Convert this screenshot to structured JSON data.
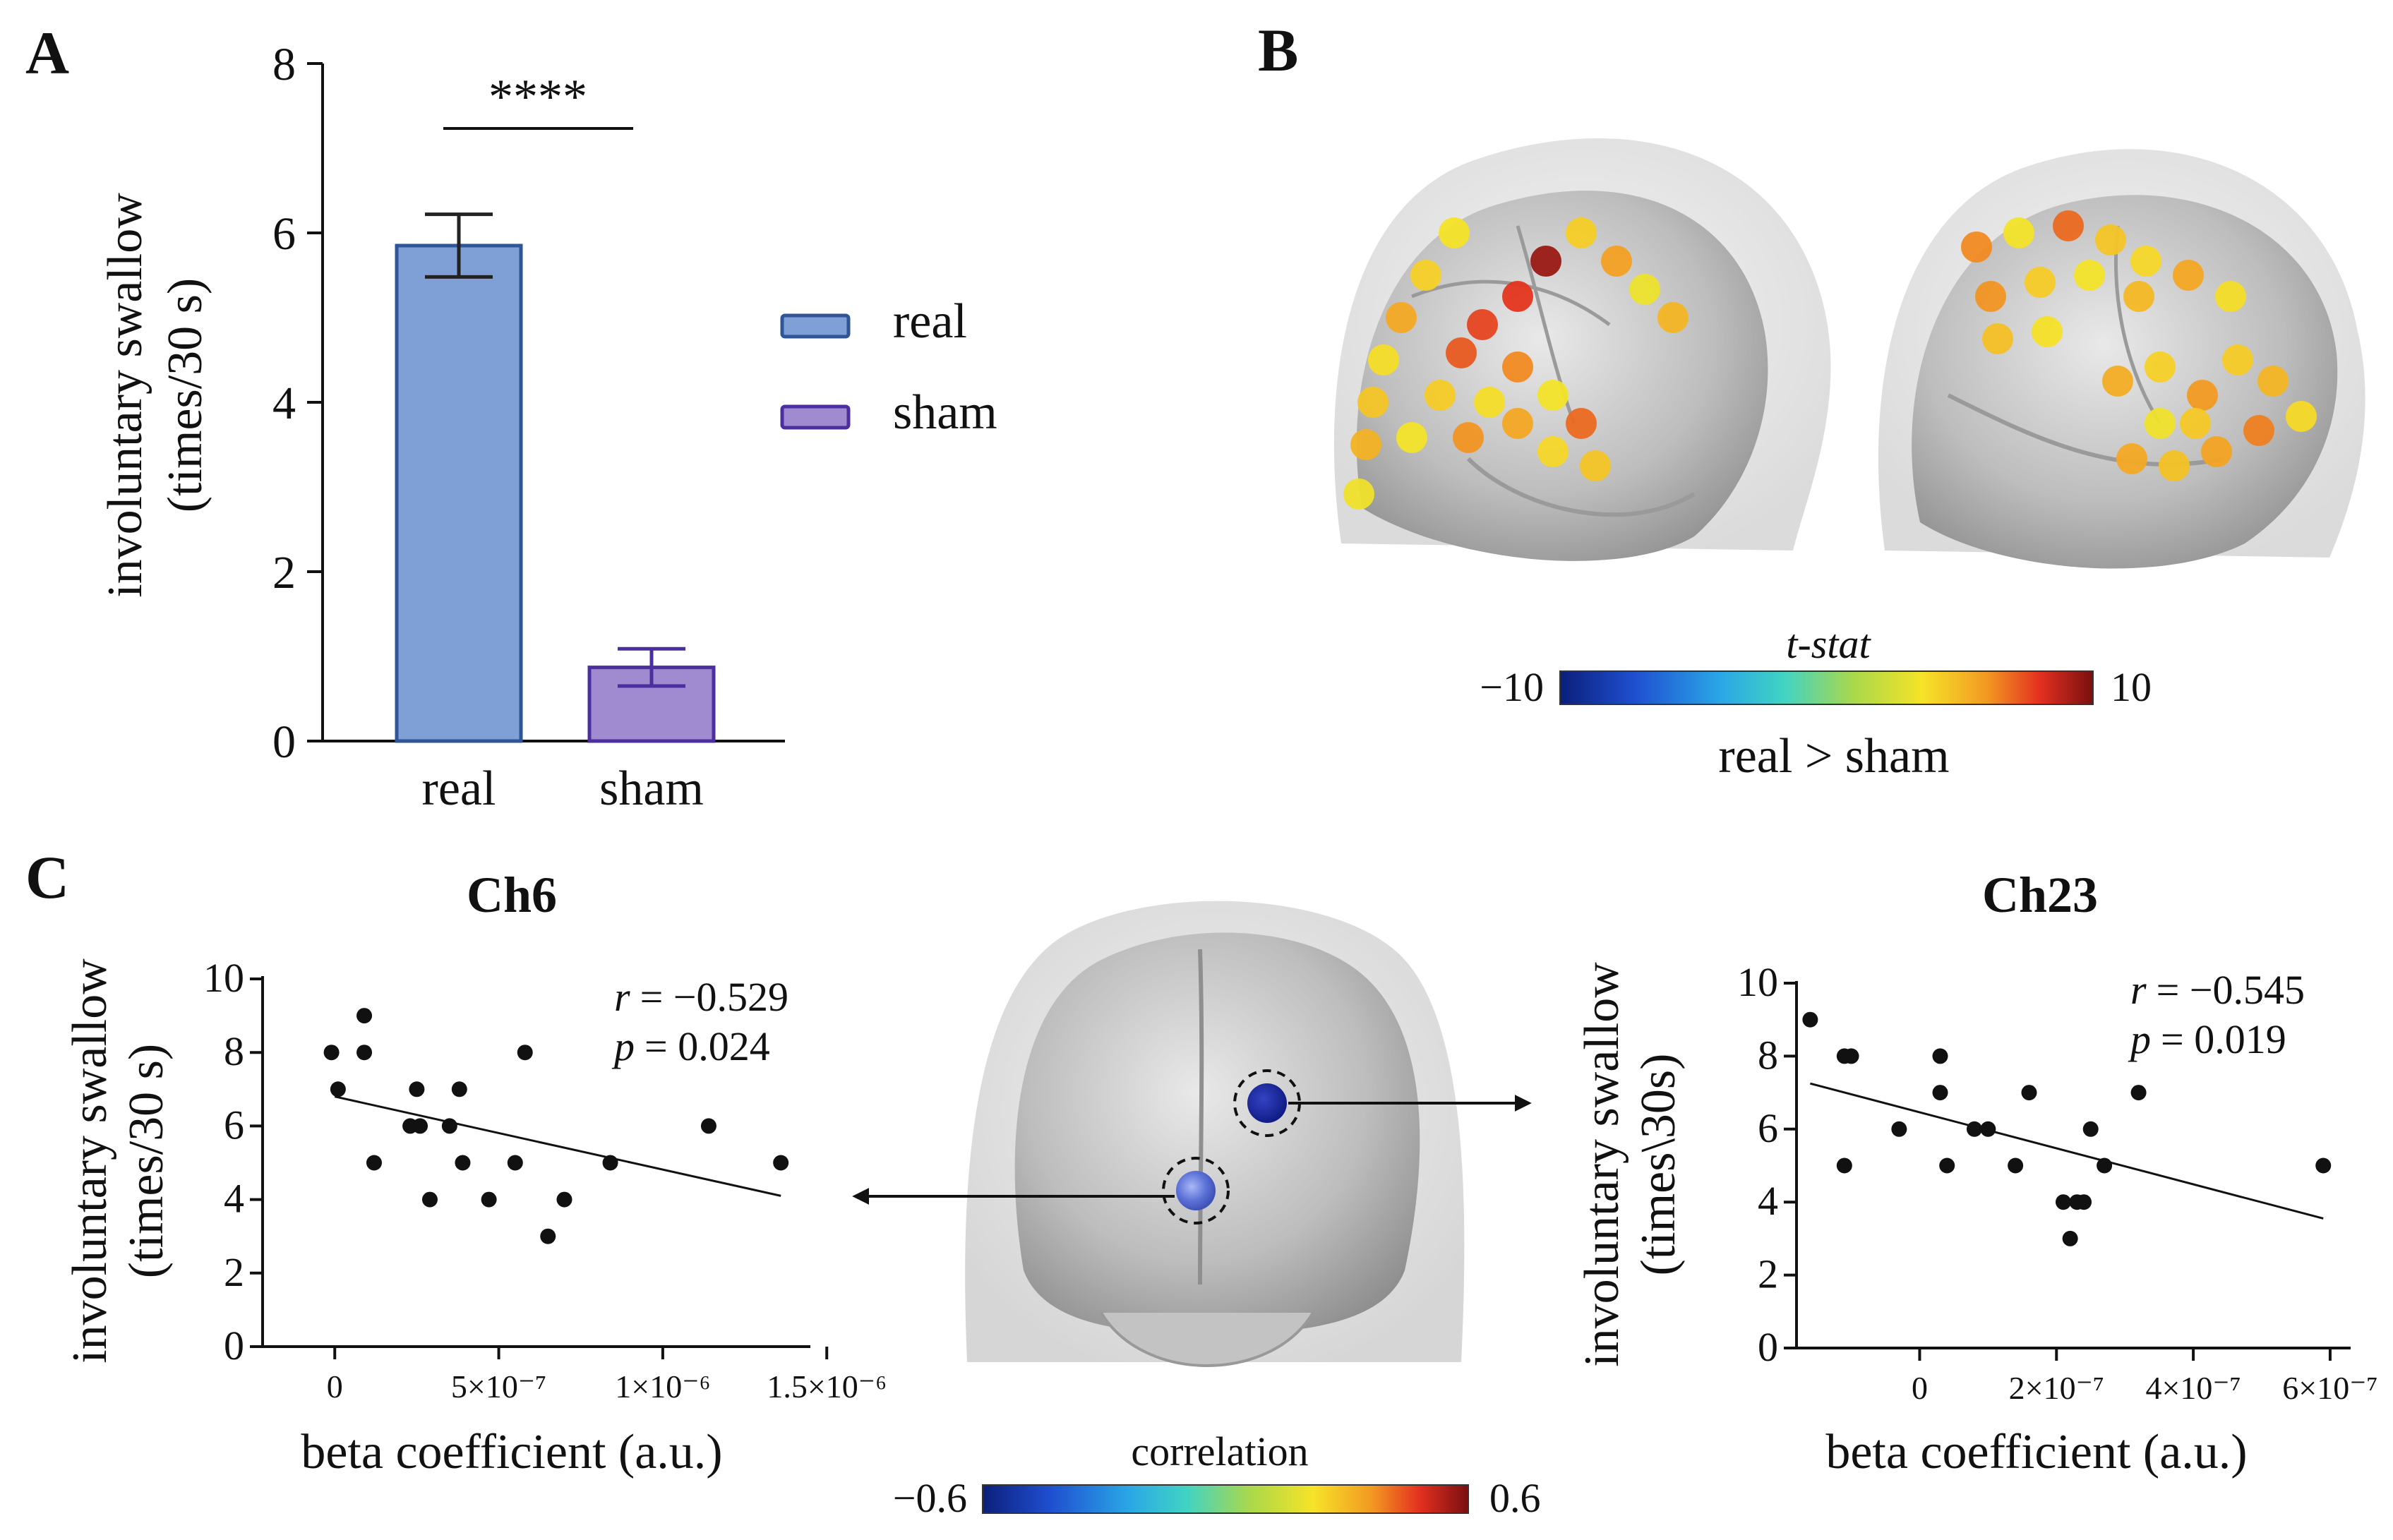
{
  "panels": {
    "a": "A",
    "b": "B",
    "c": "C"
  },
  "colors": {
    "real": "#7ea0d6",
    "real_edge": "#2f5597",
    "sham": "#a08ad0",
    "sham_edge": "#4b2f9f",
    "brain": "#c8c8c8",
    "head": "#e4e4e4"
  },
  "icons": {
    "brain_views": "brain-render-icon",
    "arrows": "arrow-icon"
  },
  "chart_data": [
    {
      "id": "A",
      "type": "bar",
      "categories": [
        "real",
        "sham"
      ],
      "values": [
        5.85,
        0.87
      ],
      "errors": [
        0.37,
        0.22
      ],
      "ylim": [
        0,
        8
      ],
      "yticks": [
        "0",
        "2",
        "4",
        "6",
        "8"
      ],
      "ylabel_line1": "involuntary swallow",
      "ylabel_line2": "(times/30 s)",
      "significance": "****",
      "legend": [
        "real",
        "sham"
      ]
    },
    {
      "id": "C-Ch6",
      "type": "scatter",
      "title": "Ch6",
      "xlabel": "beta coefficient (a.u.)",
      "ylabel_line1": "involuntary swallow",
      "ylabel_line2": "(times/30 s)",
      "xlim": [
        -2.2e-07,
        1.45e-06
      ],
      "ylim": [
        0,
        10
      ],
      "xticks": [
        {
          "v": 0,
          "label": "0"
        },
        {
          "v": 5e-07,
          "label": "5×10⁻⁷"
        },
        {
          "v": 1e-06,
          "label": "1×10⁻⁶"
        },
        {
          "v": 1.5e-06,
          "label": "1.5×10⁻⁶"
        }
      ],
      "yticks": [
        "0",
        "2",
        "4",
        "6",
        "8",
        "10"
      ],
      "points": [
        [
          -1e-08,
          8
        ],
        [
          1e-08,
          7
        ],
        [
          9e-08,
          9
        ],
        [
          9e-08,
          8
        ],
        [
          1.2e-07,
          5
        ],
        [
          2.3e-07,
          6
        ],
        [
          2.5e-07,
          7
        ],
        [
          2.6e-07,
          6
        ],
        [
          2.9e-07,
          4
        ],
        [
          3.5e-07,
          6
        ],
        [
          3.8e-07,
          7
        ],
        [
          3.9e-07,
          5
        ],
        [
          4.7e-07,
          4
        ],
        [
          5.5e-07,
          5
        ],
        [
          5.8e-07,
          8
        ],
        [
          6.5e-07,
          3
        ],
        [
          7e-07,
          4
        ],
        [
          8.4e-07,
          5
        ],
        [
          1.14e-06,
          6
        ],
        [
          1.36e-06,
          5
        ]
      ],
      "fit": [
        [
          0,
          6.8
        ],
        [
          1.36e-06,
          4.1
        ]
      ],
      "r_label": "r",
      "r_value": "= −0.529",
      "p_label": "p",
      "p_value": "= 0.024"
    },
    {
      "id": "C-Ch23",
      "type": "scatter",
      "title": "Ch23",
      "xlabel": "beta coefficient (a.u.)",
      "ylabel_line1": "involuntary swallow",
      "ylabel_line2": "(times\\30s)",
      "xlim": [
        -1.8e-07,
        6.3e-07
      ],
      "ylim": [
        0,
        10
      ],
      "xticks": [
        {
          "v": 0,
          "label": "0"
        },
        {
          "v": 2e-07,
          "label": "2×10⁻⁷"
        },
        {
          "v": 4e-07,
          "label": "4×10⁻⁷"
        },
        {
          "v": 6e-07,
          "label": "6×10⁻⁷"
        }
      ],
      "yticks": [
        "0",
        "2",
        "4",
        "6",
        "8",
        "10"
      ],
      "points": [
        [
          -1.6e-07,
          9
        ],
        [
          -1.1e-07,
          8
        ],
        [
          -1e-07,
          8
        ],
        [
          -1.1e-07,
          5
        ],
        [
          -3e-08,
          6
        ],
        [
          3e-08,
          7
        ],
        [
          3e-08,
          8
        ],
        [
          4e-08,
          5
        ],
        [
          8e-08,
          6
        ],
        [
          1e-07,
          6
        ],
        [
          1.4e-07,
          5
        ],
        [
          1.6e-07,
          7
        ],
        [
          2.1e-07,
          4
        ],
        [
          2.2e-07,
          3
        ],
        [
          2.3e-07,
          4
        ],
        [
          2.4e-07,
          4
        ],
        [
          2.5e-07,
          6
        ],
        [
          2.7e-07,
          5
        ],
        [
          3.2e-07,
          7
        ],
        [
          5.9e-07,
          5
        ]
      ],
      "fit": [
        [
          -1.6e-07,
          7.25
        ],
        [
          5.9e-07,
          3.55
        ]
      ],
      "r_label": "r",
      "r_value": "= −0.545",
      "p_label": "p",
      "p_value": "= 0.019"
    }
  ],
  "panel_b": {
    "colorbar_title": "t-stat",
    "colorbar_min": "−10",
    "colorbar_max": "10",
    "colorbar_caption": "real > sham",
    "channel_values": [
      3.6,
      4.2,
      5.5,
      3.8,
      4.6,
      5.2,
      3.4,
      7.2,
      7.6,
      7.9,
      9.4,
      4.3,
      5.8,
      3.3,
      5.1,
      6.3,
      3.5,
      6.9,
      4.6,
      4.0,
      5.6,
      3.8,
      6.1,
      4.4,
      3.5,
      5.0,
      4.8,
      3.7,
      5.4,
      4.2,
      6.0,
      4.4,
      5.1,
      3.9,
      6.5,
      5.7,
      4.7,
      5.5,
      3.4,
      4.5
    ]
  },
  "panel_c_brain": {
    "colorbar_title": "correlation",
    "colorbar_min": "−0.6",
    "colorbar_max": "0.6",
    "spots": [
      {
        "channel": "Ch23",
        "r": -0.545
      },
      {
        "channel": "Ch6",
        "r": -0.529
      }
    ]
  }
}
